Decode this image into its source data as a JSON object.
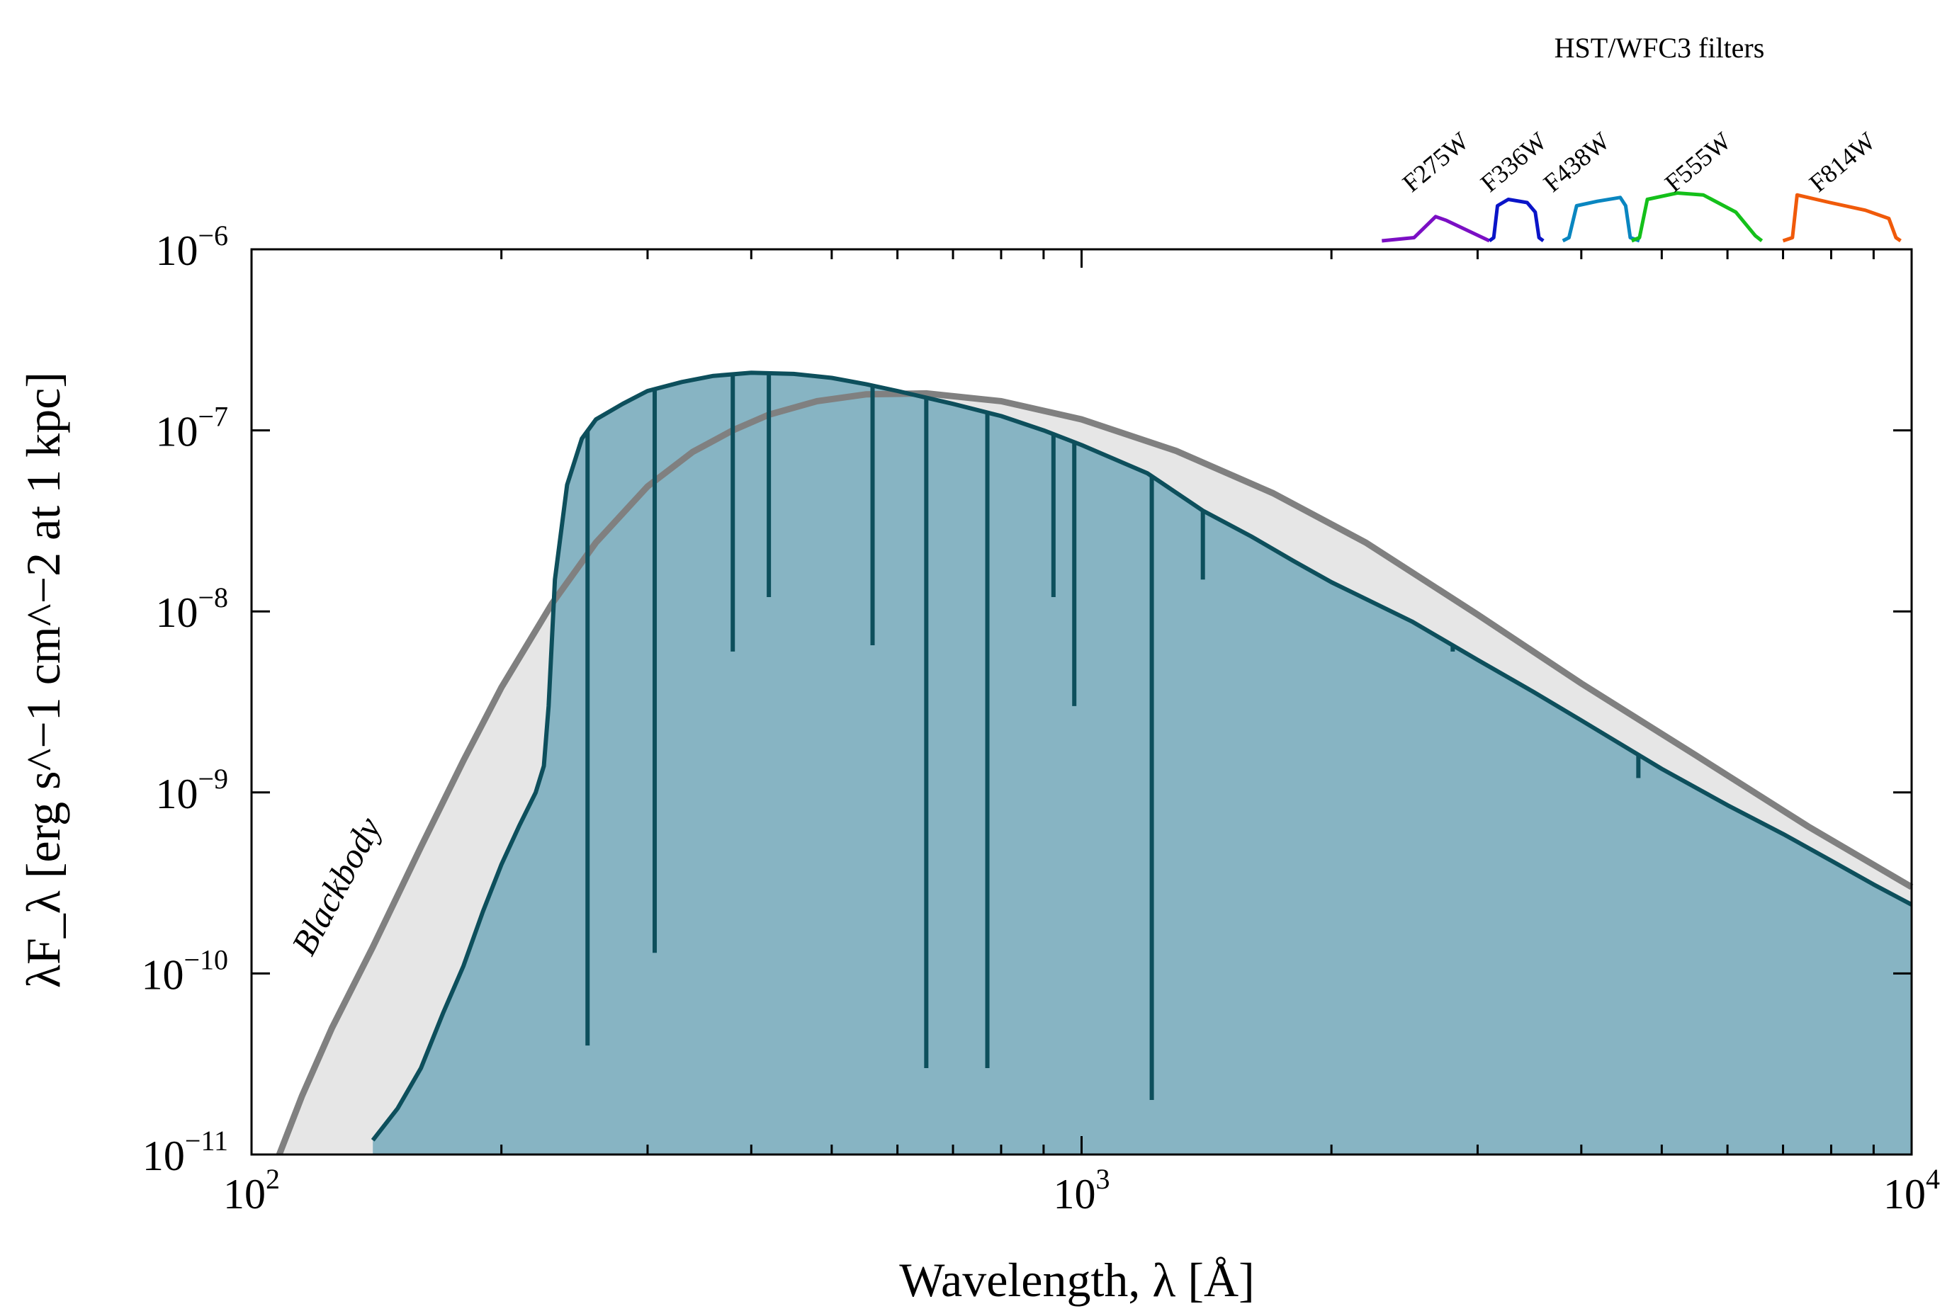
{
  "chart_data": {
    "type": "area",
    "xscale": "log",
    "yscale": "log",
    "xlim": [
      100,
      10000
    ],
    "ylim": [
      1e-11,
      1e-06
    ],
    "xlabel": "Wavelength, λ [Å]",
    "ylabel": "λF_λ [erg s^−1 cm^−2 at 1 kpc]",
    "x_ticks": [
      {
        "base": "10",
        "exp": "2",
        "value": 100
      },
      {
        "base": "10",
        "exp": "3",
        "value": 1000
      },
      {
        "base": "10",
        "exp": "4",
        "value": 10000
      }
    ],
    "y_ticks": [
      {
        "base": "10",
        "exp": "−11",
        "value": 1e-11
      },
      {
        "base": "10",
        "exp": "−10",
        "value": 1e-10
      },
      {
        "base": "10",
        "exp": "−9",
        "value": 1e-09
      },
      {
        "base": "10",
        "exp": "−8",
        "value": 1e-08
      },
      {
        "base": "10",
        "exp": "−7",
        "value": 1e-07
      },
      {
        "base": "10",
        "exp": "−6",
        "value": 1e-06
      }
    ],
    "series": [
      {
        "name": "Blackbody",
        "color": "#808080",
        "fill": "#e6e6e6",
        "x": [
          108,
          115,
          125,
          140,
          160,
          180,
          200,
          230,
          260,
          300,
          340,
          380,
          420,
          480,
          550,
          650,
          800,
          1000,
          1300,
          1700,
          2200,
          3000,
          4000,
          5500,
          7500,
          10000
        ],
        "y": [
          1e-11,
          2.1e-11,
          5e-11,
          1.4e-10,
          5e-10,
          1.5e-09,
          3.8e-09,
          1.1e-08,
          2.4e-08,
          4.9e-08,
          7.6e-08,
          1e-07,
          1.22e-07,
          1.45e-07,
          1.58e-07,
          1.6e-07,
          1.45e-07,
          1.15e-07,
          7.7e-08,
          4.5e-08,
          2.4e-08,
          9.6e-09,
          4e-09,
          1.6e-09,
          6.5e-10,
          3e-10
        ]
      },
      {
        "name": "",
        "color": "#0d4f5c",
        "fill": "#87b4c3",
        "x": [
          140,
          150,
          160,
          170,
          180,
          190,
          200,
          210,
          220,
          225,
          228,
          232,
          240,
          250,
          260,
          280,
          300,
          330,
          360,
          400,
          450,
          500,
          550,
          600,
          700,
          800,
          900,
          1000,
          1200,
          1400,
          1600,
          1800,
          2000,
          2500,
          3000,
          3500,
          4000,
          5000,
          6000,
          7000,
          8000,
          9000,
          10000
        ],
        "y": [
          1.2e-11,
          1.8e-11,
          3e-11,
          6e-11,
          1.1e-10,
          2.2e-10,
          4e-10,
          6.5e-10,
          1e-09,
          1.4e-09,
          3e-09,
          1.5e-08,
          5e-08,
          9e-08,
          1.15e-07,
          1.4e-07,
          1.65e-07,
          1.85e-07,
          2e-07,
          2.08e-07,
          2.05e-07,
          1.95e-07,
          1.8e-07,
          1.65e-07,
          1.4e-07,
          1.2e-07,
          1e-07,
          8.3e-08,
          5.8e-08,
          3.6e-08,
          2.6e-08,
          1.9e-08,
          1.45e-08,
          8.8e-09,
          5.4e-09,
          3.6e-09,
          2.5e-09,
          1.35e-09,
          8.5e-10,
          5.9e-10,
          4.2e-10,
          3.1e-10,
          2.4e-10
        ]
      }
    ],
    "absorption_lines": [
      {
        "x": 254,
        "y": 4e-11
      },
      {
        "x": 306,
        "y": 1.3e-10
      },
      {
        "x": 380,
        "y": 6e-09
      },
      {
        "x": 420,
        "y": 1.2e-08
      },
      {
        "x": 560,
        "y": 6.5e-09
      },
      {
        "x": 650,
        "y": 3e-11
      },
      {
        "x": 770,
        "y": 3e-11
      },
      {
        "x": 925,
        "y": 1.2e-08
      },
      {
        "x": 980,
        "y": 3e-09
      },
      {
        "x": 1215,
        "y": 2e-11
      },
      {
        "x": 1400,
        "y": 1.5e-08
      },
      {
        "x": 2800,
        "y": 6e-09
      },
      {
        "x": 4686,
        "y": 1.2e-09
      }
    ],
    "annotations": [
      {
        "text": "Blackbody",
        "color": "#999999"
      }
    ],
    "inset": {
      "title": "HST/WFC3 filters",
      "filters": [
        {
          "name": "F275W",
          "color": "#7b0fc4",
          "range": [
            2300,
            3100
          ]
        },
        {
          "name": "F336W",
          "color": "#0a14c8",
          "range": [
            3100,
            3600
          ]
        },
        {
          "name": "F438W",
          "color": "#0a86c0",
          "range": [
            3800,
            4700
          ]
        },
        {
          "name": "F555W",
          "color": "#14c01a",
          "range": [
            4600,
            6600
          ]
        },
        {
          "name": "F814W",
          "color": "#f05a0a",
          "range": [
            7000,
            9700
          ]
        }
      ]
    }
  }
}
